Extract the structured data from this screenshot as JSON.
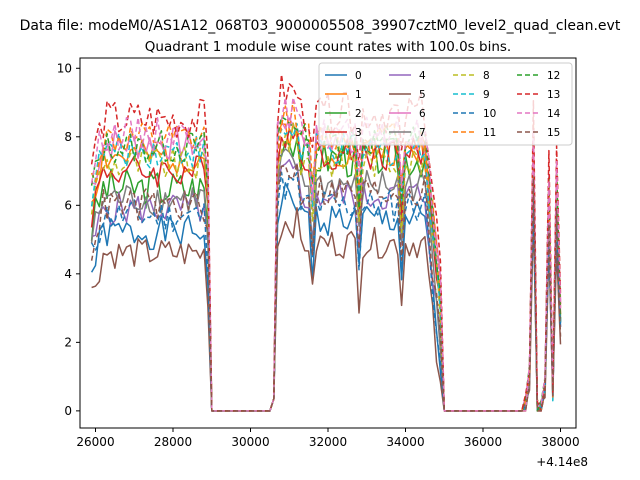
{
  "figure": {
    "suptitle": "Data file: modeM0/AS1A12_068T03_9000005508_39907cztM0_level2_quad_clean.evt",
    "offset_label": "+4.14e8"
  },
  "chart_data": {
    "type": "line",
    "title": "Quadrant 1 module wise count rates with 100.0s bins.",
    "xlabel": "",
    "ylabel": "",
    "x_offset": 414000000,
    "xlim": [
      25600,
      38400
    ],
    "ylim": [
      -0.5,
      10.3
    ],
    "x_ticks": [
      26000,
      28000,
      30000,
      32000,
      34000,
      36000,
      38000
    ],
    "x_tick_labels": [
      "26000",
      "28000",
      "30000",
      "32000",
      "34000",
      "36000",
      "38000"
    ],
    "y_ticks": [
      0,
      2,
      4,
      6,
      8,
      10
    ],
    "y_tick_labels": [
      "0",
      "2",
      "4",
      "6",
      "8",
      "10"
    ],
    "grid": false,
    "legend": {
      "placement": "top-right",
      "columns": 4
    },
    "segments": [
      {
        "x_start": 25900,
        "x_end": 28900,
        "n": 31
      },
      {
        "x_start": 30600,
        "x_end": 34900,
        "n": 44
      },
      {
        "x_start": 37100,
        "x_end": 38000,
        "n": 10
      }
    ],
    "series": [
      {
        "name": "0",
        "color": "#1f77b4",
        "dash": false,
        "levels": [
          5.2,
          5.6,
          5.9
        ],
        "noise": 0.5
      },
      {
        "name": "1",
        "color": "#ff7f0e",
        "dash": false,
        "levels": [
          7.4,
          7.6,
          7.0
        ],
        "noise": 0.5
      },
      {
        "name": "2",
        "color": "#2ca02c",
        "dash": false,
        "levels": [
          6.5,
          7.4,
          7.0
        ],
        "noise": 0.6
      },
      {
        "name": "3",
        "color": "#d62728",
        "dash": false,
        "levels": [
          7.0,
          7.5,
          7.2
        ],
        "noise": 0.5
      },
      {
        "name": "4",
        "color": "#9467bd",
        "dash": false,
        "levels": [
          5.9,
          6.3,
          6.0
        ],
        "noise": 0.5
      },
      {
        "name": "5",
        "color": "#8c564b",
        "dash": false,
        "levels": [
          4.6,
          4.9,
          5.2
        ],
        "noise": 0.45
      },
      {
        "name": "6",
        "color": "#e377c2",
        "dash": false,
        "levels": [
          7.8,
          7.9,
          7.4
        ],
        "noise": 0.5
      },
      {
        "name": "7",
        "color": "#7f7f7f",
        "dash": false,
        "levels": [
          6.2,
          6.6,
          6.3
        ],
        "noise": 0.5
      },
      {
        "name": "8",
        "color": "#bcbd22",
        "dash": true,
        "levels": [
          7.2,
          7.3,
          7.0
        ],
        "noise": 0.5
      },
      {
        "name": "9",
        "color": "#17becf",
        "dash": true,
        "levels": [
          7.6,
          7.6,
          7.2
        ],
        "noise": 0.5
      },
      {
        "name": "10",
        "color": "#1f77b4",
        "dash": true,
        "levels": [
          5.7,
          6.0,
          5.8
        ],
        "noise": 0.5
      },
      {
        "name": "11",
        "color": "#ff7f0e",
        "dash": true,
        "levels": [
          7.9,
          8.0,
          7.6
        ],
        "noise": 0.5
      },
      {
        "name": "12",
        "color": "#2ca02c",
        "dash": true,
        "levels": [
          7.7,
          7.9,
          7.5
        ],
        "noise": 0.5
      },
      {
        "name": "13",
        "color": "#d62728",
        "dash": true,
        "levels": [
          8.5,
          8.7,
          8.2
        ],
        "noise": 0.6
      },
      {
        "name": "14",
        "color": "#e377c2",
        "dash": true,
        "levels": [
          8.1,
          8.1,
          7.7
        ],
        "noise": 0.5
      },
      {
        "name": "15",
        "color": "#8c564b",
        "dash": true,
        "levels": [
          6.0,
          6.4,
          6.1
        ],
        "noise": 0.5
      }
    ]
  }
}
